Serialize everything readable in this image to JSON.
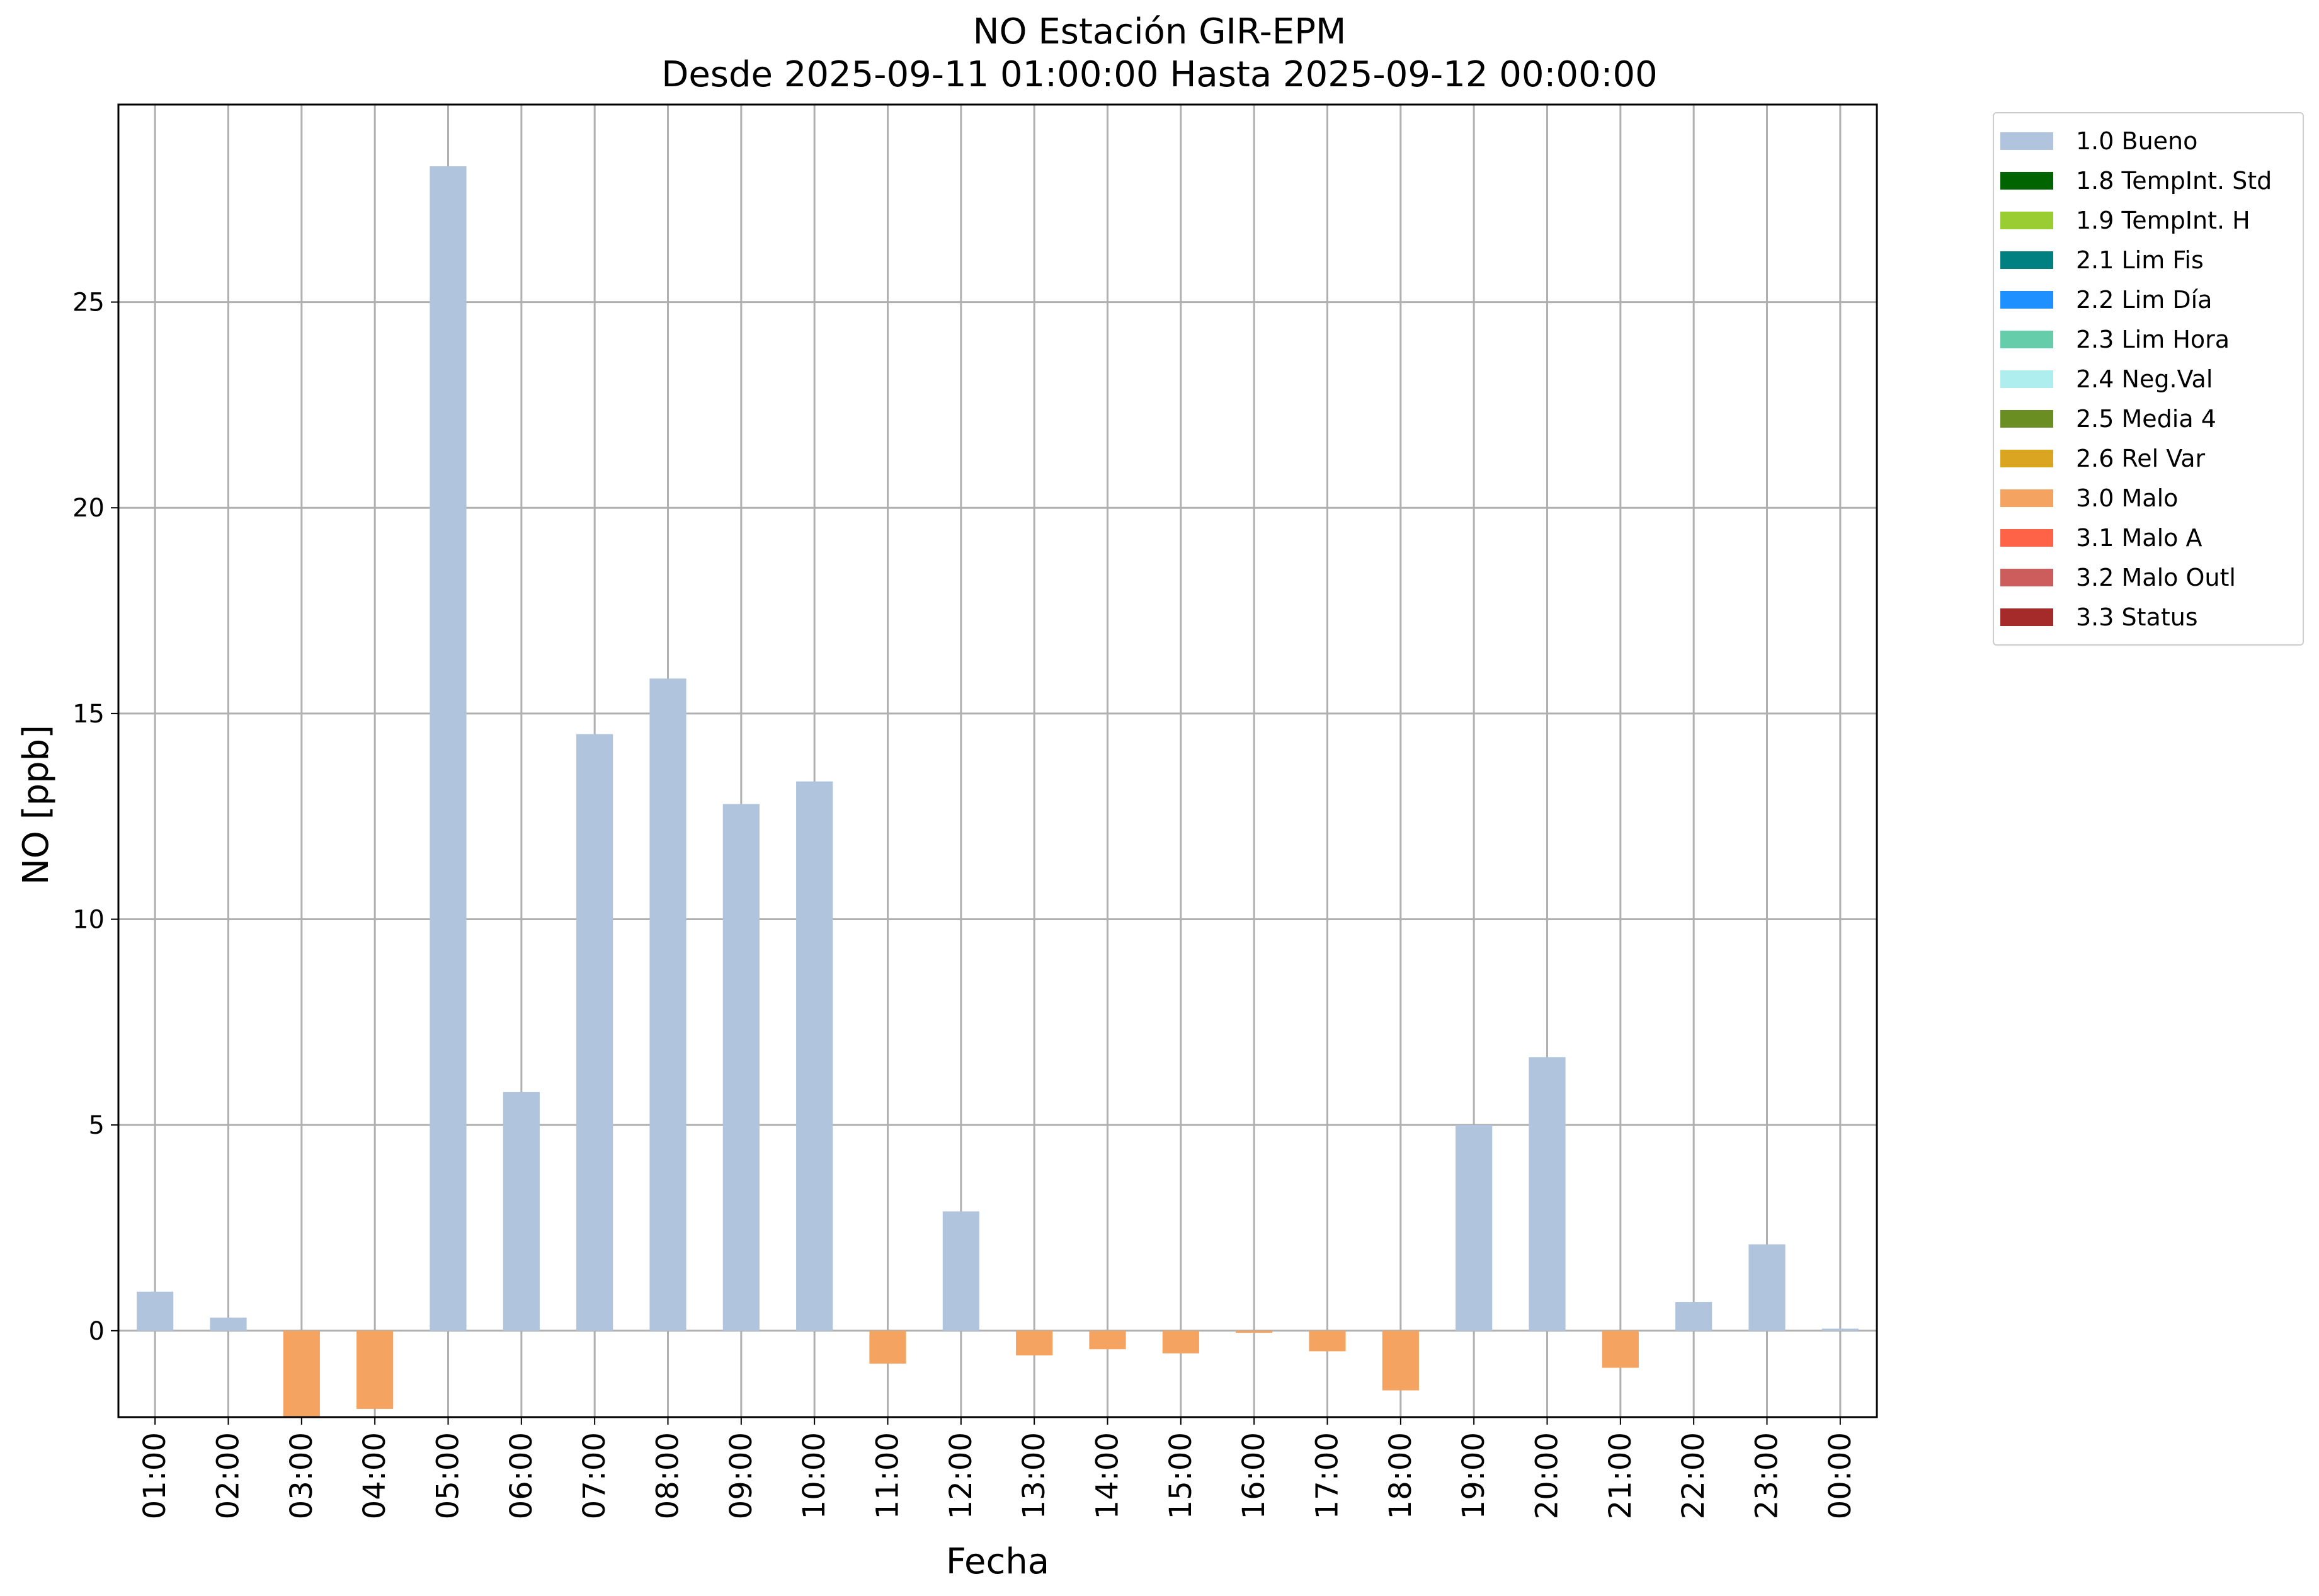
{
  "title": {
    "line1": "NO Estación GIR-EPM",
    "line2": "Desde 2025-09-11 01:00:00 Hasta 2025-09-12 00:00:00"
  },
  "chart_data": {
    "type": "bar",
    "xlabel": "Fecha",
    "ylabel": "NO [ppb]",
    "ylim": [
      -2.1,
      29.8
    ],
    "yticks": [
      0,
      5,
      10,
      15,
      20,
      25
    ],
    "grid": true,
    "legend_position": "outside-top-right",
    "categories": [
      "01:00",
      "02:00",
      "03:00",
      "04:00",
      "05:00",
      "06:00",
      "07:00",
      "08:00",
      "09:00",
      "10:00",
      "11:00",
      "12:00",
      "13:00",
      "14:00",
      "15:00",
      "16:00",
      "17:00",
      "18:00",
      "19:00",
      "20:00",
      "21:00",
      "22:00",
      "23:00",
      "00:00"
    ],
    "values": [
      0.95,
      0.32,
      -2.1,
      -1.9,
      28.3,
      5.8,
      14.5,
      15.85,
      12.8,
      13.35,
      -0.8,
      2.9,
      -0.6,
      -0.45,
      -0.55,
      -0.05,
      -0.5,
      -1.45,
      5.0,
      6.65,
      -0.9,
      0.7,
      2.1,
      0.05
    ],
    "quality": [
      "1.0 Bueno",
      "1.0 Bueno",
      "3.0 Malo",
      "3.0 Malo",
      "1.0 Bueno",
      "1.0 Bueno",
      "1.0 Bueno",
      "1.0 Bueno",
      "1.0 Bueno",
      "1.0 Bueno",
      "3.0 Malo",
      "1.0 Bueno",
      "3.0 Malo",
      "3.0 Malo",
      "3.0 Malo",
      "3.0 Malo",
      "3.0 Malo",
      "3.0 Malo",
      "1.0 Bueno",
      "1.0 Bueno",
      "3.0 Malo",
      "1.0 Bueno",
      "1.0 Bueno",
      "1.0 Bueno"
    ],
    "legend": [
      {
        "label": "1.0 Bueno",
        "color": "#b0c4de"
      },
      {
        "label": "1.8 TempInt. Std",
        "color": "#006400"
      },
      {
        "label": "1.9 TempInt. H",
        "color": "#9acd32"
      },
      {
        "label": "2.1 Lim Fis",
        "color": "#008080"
      },
      {
        "label": "2.2 Lim Día",
        "color": "#1e90ff"
      },
      {
        "label": "2.3 Lim Hora",
        "color": "#66cdaa"
      },
      {
        "label": "2.4 Neg.Val",
        "color": "#afeeee"
      },
      {
        "label": "2.5 Media 4",
        "color": "#6b8e23"
      },
      {
        "label": "2.6 Rel Var",
        "color": "#daa520"
      },
      {
        "label": "3.0 Malo",
        "color": "#f4a460"
      },
      {
        "label": "3.1 Malo A",
        "color": "#ff6347"
      },
      {
        "label": "3.2 Malo Outl",
        "color": "#cd5c5c"
      },
      {
        "label": "3.3 Status",
        "color": "#a52a2a"
      }
    ]
  }
}
